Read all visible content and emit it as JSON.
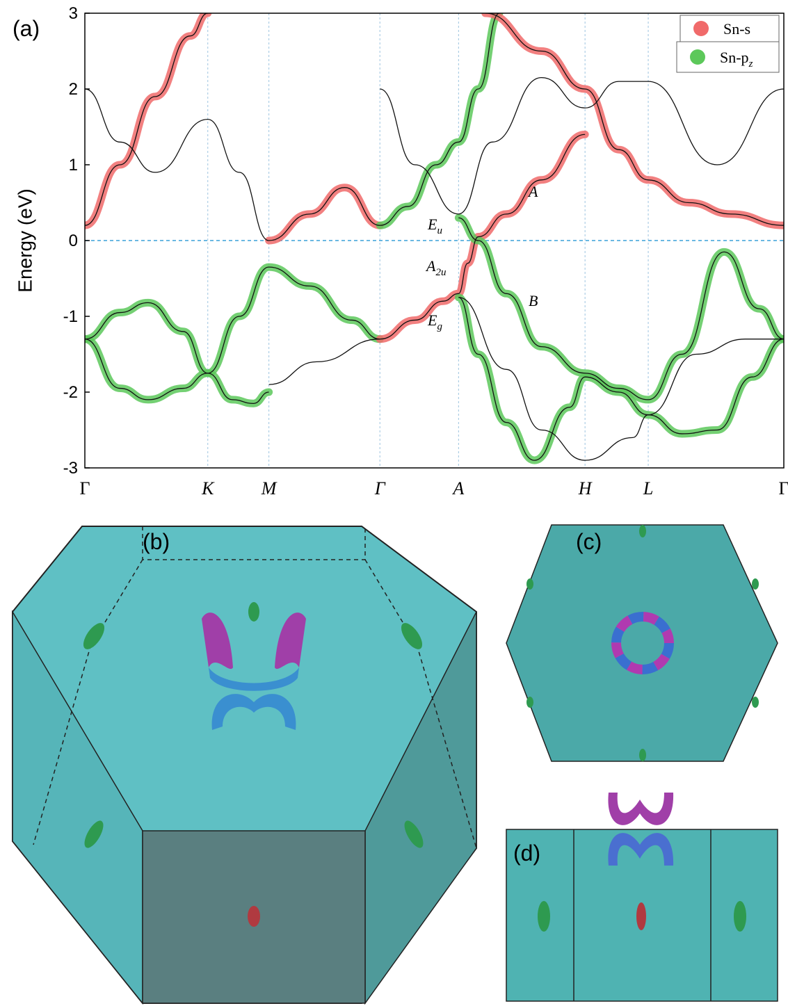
{
  "chart_data": {
    "type": "line",
    "panel_label": "(a)",
    "y_label": "Energy (eV)",
    "ylim": [
      -3,
      3
    ],
    "yticks": [
      -3,
      -2,
      -1,
      0,
      1,
      2,
      3
    ],
    "xlim": [
      0,
      9.95
    ],
    "xticks": [
      {
        "value": 0,
        "label": "Γ"
      },
      {
        "value": 1.75,
        "label": "K"
      },
      {
        "value": 2.62,
        "label": "M"
      },
      {
        "value": 4.2,
        "label": "Γ"
      },
      {
        "value": 5.32,
        "label": "A"
      },
      {
        "value": 7.12,
        "label": "H"
      },
      {
        "value": 8.02,
        "label": "L"
      },
      {
        "value": 9.95,
        "label": "Γ"
      }
    ],
    "fermi_level": 0,
    "legend_position": "upper right",
    "legend": [
      {
        "name": "Sn-s",
        "color": "#f06a6a"
      },
      {
        "name": "Sn-p",
        "name_sub": "z",
        "color": "#5cc85a"
      }
    ],
    "annotations": [
      {
        "text": "E",
        "sub": "u"
      },
      {
        "text": "A",
        "sub": "2u"
      },
      {
        "text": "E",
        "sub": "g"
      },
      {
        "text": "A"
      },
      {
        "text": "B"
      }
    ],
    "bands": [
      {
        "x": [
          0,
          0.5,
          0.9,
          1.4,
          1.75,
          2.2,
          2.62,
          3.2,
          3.8,
          4.2
        ],
        "values": [
          -1.3,
          -1.95,
          -2.1,
          -1.95,
          -1.75,
          -1.0,
          -0.35,
          -0.6,
          -1.05,
          -1.3
        ],
        "projection": 1
      },
      {
        "x": [
          0,
          0.5,
          0.9,
          1.4,
          1.75,
          2.1,
          2.4,
          2.62
        ],
        "values": [
          -1.3,
          -0.95,
          -0.82,
          -1.2,
          -1.75,
          -2.1,
          -2.15,
          -2.0
        ],
        "projection": 1
      },
      {
        "x": [
          2.62,
          3.3,
          4.2
        ],
        "values": [
          -1.9,
          -1.6,
          -1.3
        ],
        "projection": null
      },
      {
        "x": [
          4.2,
          4.7,
          5.1,
          5.32,
          5.45,
          5.6,
          6.0,
          6.5,
          7.12
        ],
        "values": [
          -1.3,
          -1.05,
          -0.8,
          -0.7,
          -0.3,
          0.05,
          0.35,
          0.8,
          1.4
        ],
        "projection": 0
      },
      {
        "x": [
          5.32,
          5.6,
          6.0,
          6.5,
          7.12,
          7.6,
          8.02,
          8.5,
          9.1,
          9.6,
          9.95
        ],
        "values": [
          0.3,
          0,
          -0.7,
          -1.4,
          -1.75,
          -1.95,
          -2.1,
          -1.5,
          -0.15,
          -0.9,
          -1.3
        ],
        "projection": 1
      },
      {
        "x": [
          5.32,
          5.6,
          6.0,
          6.4,
          6.9,
          7.12,
          7.6,
          8.02,
          8.5,
          9.0,
          9.5,
          9.95
        ],
        "values": [
          -0.75,
          -1.5,
          -2.4,
          -2.9,
          -2.2,
          -1.8,
          -2.0,
          -2.3,
          -2.55,
          -2.5,
          -1.8,
          -1.3
        ],
        "projection": 1
      },
      {
        "x": [
          0,
          0.5,
          1.0,
          1.5,
          1.75
        ],
        "values": [
          0.2,
          1.0,
          1.9,
          2.7,
          3.0
        ],
        "projection": 0
      },
      {
        "x": [
          2.62,
          3.2,
          3.7,
          4.2
        ],
        "values": [
          0,
          0.35,
          0.7,
          0.2
        ],
        "projection": 0
      },
      {
        "x": [
          4.2,
          4.6,
          5.0,
          5.32,
          5.6,
          5.9
        ],
        "values": [
          0.2,
          0.45,
          1.0,
          1.3,
          2.0,
          3.0
        ],
        "projection": 1
      },
      {
        "x": [
          5.7,
          6.5,
          7.12,
          7.6,
          8.02,
          8.6,
          9.2,
          9.95
        ],
        "values": [
          3.0,
          2.5,
          2.0,
          1.2,
          0.8,
          0.5,
          0.35,
          0.2
        ],
        "projection": 0
      },
      {
        "x": [
          0,
          0.5,
          1.0,
          1.75,
          2.2,
          2.62
        ],
        "values": [
          2.0,
          1.3,
          0.9,
          1.6,
          0.9,
          0
        ],
        "projection": null
      },
      {
        "x": [
          4.2,
          4.7,
          5.32,
          5.8,
          6.5,
          7.12,
          7.6,
          8.02,
          9.0,
          9.95
        ],
        "values": [
          2.0,
          1.0,
          0.35,
          1.3,
          2.15,
          1.75,
          2.1,
          2.1,
          1.0,
          2.0
        ],
        "projection": null
      },
      {
        "x": [
          5.32,
          6.0,
          6.5,
          7.12,
          7.8,
          8.02,
          8.7,
          9.4,
          9.95
        ],
        "values": [
          -0.75,
          -1.7,
          -2.5,
          -2.9,
          -2.6,
          -2.3,
          -1.5,
          -1.3,
          -1.3
        ],
        "projection": null
      }
    ]
  },
  "panels": {
    "b": "(b)",
    "c": "(c)",
    "d": "(d)"
  }
}
